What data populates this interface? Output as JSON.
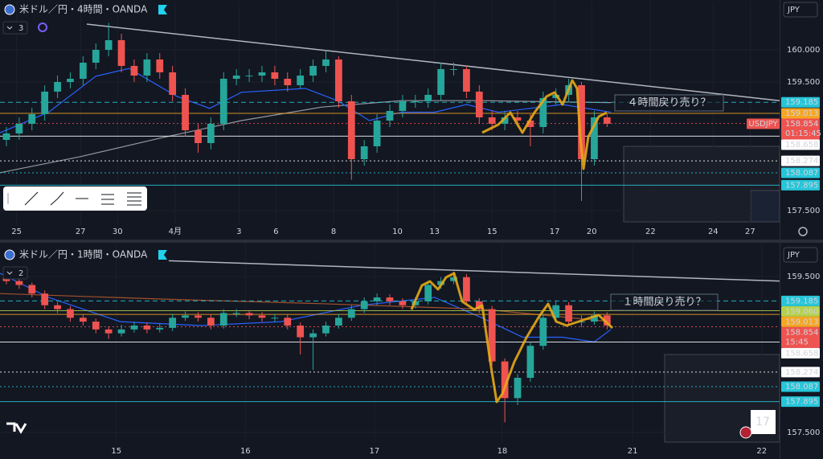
{
  "chart_data": [
    {
      "type": "candlestick",
      "title": "米ドル／円・4時間・OANDA",
      "indicators": 3,
      "currency": "JPY",
      "symbol": "USDJPY",
      "countdown": "01:15:45",
      "annotation": "４時間戻り売り？",
      "up_color": "#26a69a",
      "down_color": "#ef5350",
      "xlim": [
        0,
        61
      ],
      "ylim": [
        157.275,
        160.65
      ],
      "xticks": [
        {
          "value": 1.3,
          "label": "25"
        },
        {
          "value": 6.3,
          "label": "27"
        },
        {
          "value": 9.2,
          "label": "30"
        },
        {
          "value": 13.7,
          "label": "4月"
        },
        {
          "value": 18.7,
          "label": "3"
        },
        {
          "value": 21.6,
          "label": "6"
        },
        {
          "value": 26.1,
          "label": "8"
        },
        {
          "value": 31.1,
          "label": "10"
        },
        {
          "value": 34.0,
          "label": "13"
        },
        {
          "value": 38.5,
          "label": "15"
        },
        {
          "value": 43.4,
          "label": "17"
        },
        {
          "value": 46.3,
          "label": "20"
        },
        {
          "value": 50.9,
          "label": "22"
        },
        {
          "value": 55.8,
          "label": "24"
        },
        {
          "value": 58.7,
          "label": "27"
        }
      ],
      "yticks": [
        {
          "value": 160,
          "label": "160.000"
        },
        {
          "value": 159.5,
          "label": "159.500"
        },
        {
          "value": 157.5,
          "label": "157.500"
        }
      ],
      "ohlc": [
        [
          158.6,
          158.8,
          158.5,
          158.7
        ],
        [
          158.7,
          158.95,
          158.6,
          158.85
        ],
        [
          158.85,
          159.1,
          158.75,
          159.0
        ],
        [
          159.0,
          159.45,
          158.9,
          159.35
        ],
        [
          159.35,
          159.6,
          159.25,
          159.5
        ],
        [
          159.5,
          159.65,
          159.4,
          159.55
        ],
        [
          159.55,
          159.9,
          159.45,
          159.8
        ],
        [
          159.8,
          160.1,
          159.7,
          160.0
        ],
        [
          160.0,
          160.42,
          159.9,
          160.15
        ],
        [
          160.15,
          160.25,
          159.65,
          159.75
        ],
        [
          159.75,
          159.85,
          159.5,
          159.6
        ],
        [
          159.6,
          159.95,
          159.5,
          159.85
        ],
        [
          159.85,
          159.95,
          159.55,
          159.65
        ],
        [
          159.65,
          159.75,
          159.2,
          159.3
        ],
        [
          159.3,
          159.4,
          158.65,
          158.75
        ],
        [
          158.75,
          158.85,
          158.4,
          158.55
        ],
        [
          158.55,
          158.95,
          158.45,
          158.85
        ],
        [
          158.85,
          159.65,
          158.75,
          159.55
        ],
        [
          159.55,
          159.7,
          159.45,
          159.6
        ],
        [
          159.6,
          159.7,
          159.5,
          159.6
        ],
        [
          159.6,
          159.75,
          159.5,
          159.65
        ],
        [
          159.65,
          159.75,
          159.45,
          159.55
        ],
        [
          159.55,
          159.65,
          159.35,
          159.45
        ],
        [
          159.45,
          159.7,
          159.4,
          159.6
        ],
        [
          159.6,
          159.85,
          159.5,
          159.75
        ],
        [
          159.75,
          160.0,
          159.65,
          159.85
        ],
        [
          159.85,
          159.9,
          159.1,
          159.2
        ],
        [
          159.2,
          159.3,
          157.98,
          158.3
        ],
        [
          158.3,
          158.6,
          158.2,
          158.5
        ],
        [
          158.5,
          159.0,
          158.4,
          158.9
        ],
        [
          158.9,
          159.15,
          158.8,
          159.05
        ],
        [
          159.05,
          159.3,
          158.95,
          159.2
        ],
        [
          159.2,
          159.3,
          159.1,
          159.2
        ],
        [
          159.2,
          159.4,
          159.1,
          159.3
        ],
        [
          159.3,
          159.8,
          159.2,
          159.7
        ],
        [
          159.7,
          159.8,
          159.6,
          159.7
        ],
        [
          159.7,
          159.75,
          159.25,
          159.35
        ],
        [
          159.35,
          159.45,
          158.85,
          158.95
        ],
        [
          158.95,
          159.05,
          158.75,
          158.85
        ],
        [
          158.85,
          159.05,
          158.75,
          158.95
        ],
        [
          158.95,
          159.05,
          158.8,
          158.9
        ],
        [
          158.9,
          159.0,
          158.5,
          158.8
        ],
        [
          158.8,
          159.35,
          158.7,
          159.25
        ],
        [
          159.25,
          159.4,
          159.15,
          159.3
        ],
        [
          159.3,
          159.55,
          159.2,
          159.45
        ],
        [
          159.45,
          159.5,
          157.65,
          158.3
        ],
        [
          158.3,
          159.05,
          158.2,
          158.95
        ],
        [
          158.95,
          159.0,
          158.8,
          158.85
        ]
      ],
      "lines": [
        {
          "color": "#9598a1",
          "x": [
            0,
            6.3,
            12.6,
            18.9,
            25.2,
            31.4,
            37.7,
            44,
            47.8
          ],
          "values": [
            158.09,
            158.34,
            158.63,
            158.9,
            159.11,
            159.21,
            159.21,
            159.19,
            159.18
          ]
        },
        {
          "color": "#2962ff",
          "x": [
            0,
            3.8,
            7.5,
            10.1,
            13.8,
            16.4,
            18.9,
            23.9,
            26.4,
            28.9,
            31.4,
            34,
            36.5,
            39,
            44,
            47.8
          ],
          "values": [
            158.71,
            159.03,
            159.59,
            159.71,
            159.28,
            159.09,
            159.34,
            159.4,
            159.21,
            158.9,
            159.03,
            159.03,
            159.15,
            159.03,
            159.15,
            159.03
          ]
        }
      ],
      "trendline": {
        "color": "#b2b5be",
        "x": [
          6.79,
          61
        ],
        "values": [
          160.4,
          159.21
        ]
      },
      "levels": [
        {
          "value": 159.185,
          "color": "#26c6da",
          "style": "dashed"
        },
        {
          "value": 159.013,
          "color": "#f5a623",
          "style": "solid"
        },
        {
          "value": 158.854,
          "color": "#ef5350",
          "style": "dotted",
          "current": true
        },
        {
          "value": 158.658,
          "color": "#ffffff",
          "style": "solid"
        },
        {
          "value": 158.274,
          "color": "#ffffff",
          "style": "dotted"
        },
        {
          "value": 158.087,
          "color": "#26c6da",
          "style": "dotted"
        },
        {
          "value": 157.895,
          "color": "#26c6da",
          "style": "solid"
        }
      ]
    },
    {
      "type": "candlestick",
      "title": "米ドル／円・1時間・OANDA",
      "indicators": 2,
      "currency": "JPY",
      "countdown": "15:45",
      "annotation": "１時間戻り売り？",
      "badge": "17",
      "up_color": "#26a69a",
      "down_color": "#ef5350",
      "xlim": [
        0,
        61
      ],
      "ylim": [
        157.376,
        159.9
      ],
      "xticks": [
        {
          "value": 9.1,
          "label": "15"
        },
        {
          "value": 19.2,
          "label": "16"
        },
        {
          "value": 29.3,
          "label": "17"
        },
        {
          "value": 39.3,
          "label": "18"
        },
        {
          "value": 49.5,
          "label": "21"
        },
        {
          "value": 59.6,
          "label": "22"
        }
      ],
      "yticks": [
        {
          "value": 159.5,
          "label": "159.500"
        },
        {
          "value": 157.5,
          "label": "157.500"
        }
      ],
      "ohlc": [
        [
          159.5,
          159.55,
          159.4,
          159.44
        ],
        [
          159.44,
          159.48,
          159.34,
          159.39
        ],
        [
          159.39,
          159.42,
          159.23,
          159.28
        ],
        [
          159.28,
          159.32,
          159.08,
          159.13
        ],
        [
          159.13,
          159.17,
          159.03,
          159.08
        ],
        [
          159.08,
          159.12,
          158.92,
          158.97
        ],
        [
          158.97,
          159.02,
          158.87,
          158.92
        ],
        [
          158.92,
          158.96,
          158.77,
          158.82
        ],
        [
          158.82,
          158.86,
          158.7,
          158.77
        ],
        [
          158.77,
          158.88,
          158.73,
          158.82
        ],
        [
          158.82,
          158.92,
          158.78,
          158.87
        ],
        [
          158.87,
          158.91,
          158.77,
          158.82
        ],
        [
          158.82,
          158.9,
          158.78,
          158.84
        ],
        [
          158.84,
          159.02,
          158.8,
          158.97
        ],
        [
          158.97,
          159.05,
          158.93,
          159.0
        ],
        [
          159.0,
          159.04,
          158.92,
          158.97
        ],
        [
          158.97,
          159.01,
          158.82,
          158.87
        ],
        [
          158.87,
          159.08,
          158.83,
          159.03
        ],
        [
          159.03,
          159.08,
          158.98,
          159.03
        ],
        [
          159.03,
          159.07,
          158.95,
          159.0
        ],
        [
          159.0,
          159.04,
          158.92,
          158.97
        ],
        [
          158.97,
          159.02,
          158.92,
          158.97
        ],
        [
          158.97,
          159.01,
          158.82,
          158.87
        ],
        [
          158.87,
          158.91,
          158.5,
          158.72
        ],
        [
          158.72,
          158.82,
          158.3,
          158.77
        ],
        [
          158.77,
          158.92,
          158.73,
          158.87
        ],
        [
          158.87,
          159.02,
          158.83,
          158.97
        ],
        [
          158.97,
          159.13,
          158.93,
          159.08
        ],
        [
          159.08,
          159.23,
          159.03,
          159.18
        ],
        [
          159.18,
          159.28,
          159.13,
          159.23
        ],
        [
          159.23,
          159.27,
          159.13,
          159.18
        ],
        [
          159.18,
          159.22,
          159.08,
          159.13
        ],
        [
          159.13,
          159.23,
          159.09,
          159.18
        ],
        [
          159.18,
          159.44,
          159.14,
          159.39
        ],
        [
          159.39,
          159.49,
          159.34,
          159.44
        ],
        [
          159.44,
          159.56,
          159.4,
          159.49
        ],
        [
          159.49,
          159.53,
          159.13,
          159.18
        ],
        [
          159.18,
          159.22,
          159.03,
          159.08
        ],
        [
          159.08,
          159.12,
          158.36,
          158.41
        ],
        [
          158.41,
          158.45,
          157.63,
          157.94
        ],
        [
          157.94,
          158.25,
          157.85,
          158.2
        ],
        [
          158.2,
          158.66,
          158.15,
          158.61
        ],
        [
          158.61,
          159.02,
          158.56,
          158.97
        ],
        [
          158.97,
          159.18,
          158.92,
          159.13
        ],
        [
          159.13,
          159.17,
          158.87,
          158.92
        ],
        [
          158.92,
          159.0,
          158.85,
          158.92
        ],
        [
          158.92,
          159.05,
          158.88,
          159.0
        ],
        [
          159.0,
          159.04,
          158.82,
          158.87
        ]
      ],
      "lines": [
        {
          "color": "#2962ff",
          "x": [
            0,
            3.8,
            9.4,
            15.7,
            22,
            28.3,
            34,
            37.7,
            40.9,
            44,
            46.5,
            47.8
          ],
          "values": [
            159.54,
            159.23,
            158.92,
            158.87,
            158.92,
            159.13,
            159.23,
            158.97,
            158.72,
            158.72,
            158.66,
            158.82
          ]
        },
        {
          "color": "#a0522d",
          "x": [
            0,
            12.6,
            25.2,
            37.7,
            47.8
          ],
          "values": [
            159.28,
            159.21,
            159.15,
            159.08,
            158.92
          ]
        }
      ],
      "trendline": {
        "color": "#b2b5be",
        "x": [
          13.2,
          61
        ],
        "values": [
          159.7,
          159.44
        ]
      },
      "levels": [
        {
          "value": 159.185,
          "color": "#26c6da",
          "style": "dashed"
        },
        {
          "value": 159.06,
          "label": "159.060",
          "color": "#b5d14b",
          "style": "solid"
        },
        {
          "value": 159.013,
          "color": "#f5a623",
          "style": "solid"
        },
        {
          "value": 158.854,
          "color": "#ef5350",
          "style": "dotted",
          "current": true
        },
        {
          "value": 158.658,
          "color": "#ffffff",
          "style": "solid"
        },
        {
          "value": 158.274,
          "color": "#ffffff",
          "style": "dotted"
        },
        {
          "value": 158.087,
          "color": "#26c6da",
          "style": "dotted"
        },
        {
          "value": 157.895,
          "color": "#26c6da",
          "style": "solid"
        }
      ]
    }
  ]
}
